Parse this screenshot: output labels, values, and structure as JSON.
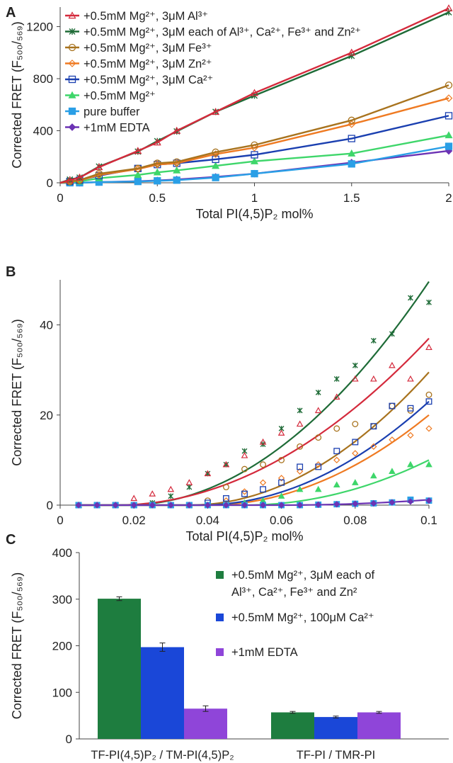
{
  "panels": [
    {
      "id": "A",
      "letter": "A",
      "chart_data": {
        "type": "line",
        "xlabel": "Total PI(4,5)P₂ mol%",
        "ylabel": "Corrected FRET (F₅₀₀/₅₆₉)",
        "xlim": [
          0,
          2
        ],
        "ylim": [
          0,
          1350
        ],
        "xticks": [
          0,
          0.5,
          1,
          1.5,
          2
        ],
        "xtick_labels": [
          "0",
          "0.5",
          "1",
          "1.5",
          "2"
        ],
        "yticks": [
          0,
          400,
          800,
          1200
        ],
        "ytick_labels": [
          "0",
          "400",
          "800",
          "1200"
        ],
        "grid": false,
        "legend_position": "top-left",
        "x": [
          0,
          0.05,
          0.1,
          0.2,
          0.4,
          0.5,
          0.6,
          0.8,
          1,
          1.5,
          2
        ],
        "series": [
          {
            "name": "+0.5mM Mg²⁺, 3μM Al³⁺",
            "color": "#d42a3c",
            "marker": "triangle-open",
            "values": [
              0,
              20,
              40,
              120,
              245,
              310,
              400,
              545,
              690,
              1000,
              1340
            ]
          },
          {
            "name": "+0.5mM Mg²⁺, 3μM each of Al³⁺, Ca²⁺, Fe³⁺ and Zn²⁺",
            "color": "#1e6b37",
            "marker": "asterisk",
            "values": [
              0,
              25,
              40,
              125,
              240,
              320,
              395,
              545,
              670,
              975,
              1310
            ]
          },
          {
            "name": "+0.5mM Mg²⁺, 3μM Fe³⁺",
            "color": "#a8731e",
            "marker": "circle-open",
            "values": [
              0,
              10,
              20,
              70,
              110,
              150,
              160,
              235,
              290,
              480,
              750
            ]
          },
          {
            "name": "+0.5mM Mg²⁺, 3μM Zn²⁺",
            "color": "#ef7a22",
            "marker": "diamond-open",
            "values": [
              0,
              8,
              18,
              60,
              105,
              140,
              150,
              220,
              270,
              450,
              650
            ]
          },
          {
            "name": "+0.5mM Mg²⁺, 3μM Ca²⁺",
            "color": "#1a3fb0",
            "marker": "square-open",
            "values": [
              0,
              10,
              20,
              55,
              110,
              140,
              150,
              180,
              215,
              340,
              515
            ]
          },
          {
            "name": "+0.5mM Mg²⁺",
            "color": "#3ed66a",
            "marker": "triangle",
            "values": [
              0,
              5,
              10,
              35,
              60,
              80,
              95,
              130,
              165,
              225,
              365
            ]
          },
          {
            "name": "pure buffer",
            "color": "#2a9fe6",
            "marker": "square",
            "values": [
              0,
              0,
              0,
              5,
              10,
              15,
              20,
              40,
              70,
              145,
              280
            ]
          },
          {
            "name": "+1mM EDTA",
            "color": "#6c33b4",
            "marker": "diamond",
            "values": [
              0,
              0,
              0,
              5,
              12,
              18,
              25,
              45,
              70,
              155,
              245
            ]
          }
        ]
      }
    },
    {
      "id": "B",
      "letter": "B",
      "chart_data": {
        "type": "scatter",
        "xlabel": "Total PI(4,5)P₂ mol%",
        "ylabel": "Corrected FRET (F₅₀₀/₅₆₉)",
        "xlim": [
          0,
          0.1
        ],
        "ylim": [
          0,
          50
        ],
        "xticks": [
          0,
          0.02,
          0.04,
          0.06,
          0.08,
          0.1
        ],
        "xtick_labels": [
          "0",
          "0.02",
          "0.04",
          "0.06",
          "0.08",
          "0.1"
        ],
        "yticks": [
          0,
          20,
          40
        ],
        "ytick_labels": [
          "0",
          "20",
          "40"
        ],
        "grid": false,
        "x": [
          0.005,
          0.01,
          0.015,
          0.02,
          0.025,
          0.03,
          0.035,
          0.04,
          0.045,
          0.05,
          0.055,
          0.06,
          0.065,
          0.07,
          0.075,
          0.08,
          0.085,
          0.09,
          0.095,
          0.1
        ],
        "series": [
          {
            "color": "#1e6b37",
            "marker": "asterisk",
            "values": [
              0,
              0,
              0,
              0,
              0.5,
              2,
              4,
              7,
              9,
              12,
              13.5,
              17,
              21,
              25,
              28,
              31,
              36.5,
              38,
              46,
              45
            ],
            "fit": {
              "x0": 0.018,
              "xmax": 0.1,
              "ymax": 49.6
            }
          },
          {
            "color": "#d42a3c",
            "marker": "triangle-open",
            "values": [
              0,
              0,
              0,
              1.5,
              2.5,
              3.5,
              5,
              7,
              9,
              11,
              14,
              16,
              18,
              21,
              24,
              28,
              28,
              31,
              28,
              35
            ],
            "fit": {
              "x0": 0.015,
              "xmax": 0.1,
              "ymax": 37
            }
          },
          {
            "color": "#a8731e",
            "marker": "circle-open",
            "values": [
              0,
              0,
              0,
              0,
              0,
              0,
              0,
              1,
              4,
              8,
              9,
              10,
              13,
              15,
              17,
              18,
              17.5,
              22,
              21,
              24.5
            ],
            "fit": {
              "x0": 0.035,
              "xmax": 0.1,
              "ymax": 29.5
            }
          },
          {
            "color": "#ef7a22",
            "marker": "diamond-open",
            "values": [
              0,
              0,
              0,
              0,
              0,
              0,
              0,
              0,
              1,
              3,
              5,
              6,
              7.5,
              9,
              10,
              11.5,
              13,
              14.5,
              15.5,
              17
            ],
            "fit": {
              "x0": 0.04,
              "xmax": 0.1,
              "ymax": 20
            }
          },
          {
            "color": "#1a3fb0",
            "marker": "square-open",
            "values": [
              0,
              0,
              0,
              0,
              0,
              0,
              0,
              0.5,
              1.5,
              2.5,
              3.5,
              5,
              8.5,
              8.5,
              12,
              14,
              17.5,
              22,
              21.5,
              23
            ],
            "fit": {
              "x0": 0.038,
              "xmax": 0.1,
              "ymax": 23
            }
          },
          {
            "color": "#3ed66a",
            "marker": "triangle",
            "values": [
              0,
              0,
              0,
              0,
              0,
              0,
              0,
              0,
              0,
              0.5,
              1,
              2,
              3.5,
              3.5,
              4.5,
              5,
              6.5,
              7.5,
              9,
              9
            ],
            "fit": {
              "x0": 0.05,
              "xmax": 0.1,
              "ymax": 10
            }
          },
          {
            "color": "#2a9fe6",
            "marker": "square",
            "values": [
              0,
              0,
              0,
              0,
              0,
              0,
              0,
              0,
              0,
              0,
              0,
              0,
              0,
              0.1,
              0.2,
              0.3,
              0.4,
              0.6,
              1.2,
              1.0
            ],
            "fit": null
          },
          {
            "color": "#6c33b4",
            "marker": "diamond",
            "values": [
              0,
              0,
              0,
              0,
              0,
              0,
              0,
              0,
              0,
              0,
              0,
              0,
              0,
              0.1,
              0.2,
              0.3,
              0.4,
              0.6,
              0.8,
              1.0
            ],
            "fit": {
              "x0": 0.06,
              "xmax": 0.1,
              "ymax": 1.2
            }
          }
        ]
      }
    },
    {
      "id": "C",
      "letter": "C",
      "chart_data": {
        "type": "bar",
        "ylabel": "Corrected FRET (F₅₀₀/₅₆₉)",
        "ylim": [
          0,
          400
        ],
        "yticks": [
          0,
          100,
          200,
          300,
          400
        ],
        "ytick_labels": [
          "0",
          "100",
          "200",
          "300",
          "400"
        ],
        "grid": false,
        "legend_position": "top-right",
        "categories": [
          "TF-PI(4,5)P₂ / TM-PI(4,5)P₂",
          "TF-PI / TMR-PI"
        ],
        "series": [
          {
            "name": "+0.5mM Mg²⁺, 3μM each of Al³⁺, Ca²⁺, Fe³⁺ and Zn²",
            "color": "#1e7d3f",
            "values": [
              301,
              57
            ],
            "errors": [
              4,
              2
            ]
          },
          {
            "name": "+0.5mM Mg²⁺, 100μM Ca²⁺",
            "color": "#1a47d8",
            "values": [
              197,
              47
            ],
            "errors": [
              9,
              2
            ]
          },
          {
            "name": "+1mM EDTA",
            "color": "#8f45d9",
            "values": [
              65,
              57
            ],
            "errors": [
              6,
              2
            ]
          }
        ]
      }
    }
  ]
}
